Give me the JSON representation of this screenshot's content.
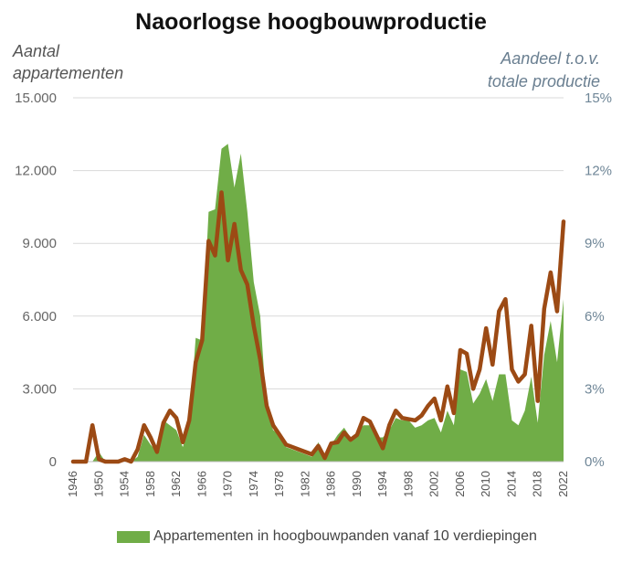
{
  "chart_data": {
    "type": "area",
    "title": "Naoorlogse hoogbouwproductie",
    "ylabel_left_lines": [
      "Aantal",
      "appartementen"
    ],
    "ylabel_right_lines": [
      "Aandeel t.o.v.",
      "totale productie"
    ],
    "ylim_left": [
      0,
      15000
    ],
    "ylim_right": [
      0,
      15
    ],
    "yticks_left": [
      "0",
      "3.000",
      "6.000",
      "9.000",
      "12.000",
      "15.000"
    ],
    "yticks_right": [
      "0%",
      "3%",
      "6%",
      "9%",
      "12%",
      "15%"
    ],
    "xticks": [
      "1946",
      "1950",
      "1954",
      "1958",
      "1962",
      "1966",
      "1970",
      "1974",
      "1978",
      "1982",
      "1986",
      "1990",
      "1994",
      "1998",
      "2002",
      "2006",
      "2010",
      "2014",
      "2018",
      "2022"
    ],
    "x": [
      1946,
      1947,
      1948,
      1949,
      1950,
      1951,
      1952,
      1953,
      1954,
      1955,
      1956,
      1957,
      1958,
      1959,
      1960,
      1961,
      1962,
      1963,
      1964,
      1965,
      1966,
      1967,
      1968,
      1969,
      1970,
      1971,
      1972,
      1973,
      1974,
      1975,
      1976,
      1977,
      1978,
      1979,
      1980,
      1981,
      1982,
      1983,
      1984,
      1985,
      1986,
      1987,
      1988,
      1989,
      1990,
      1991,
      1992,
      1993,
      1994,
      1995,
      1996,
      1997,
      1998,
      1999,
      2000,
      2001,
      2002,
      2003,
      2004,
      2005,
      2006,
      2007,
      2008,
      2009,
      2010,
      2011,
      2012,
      2013,
      2014,
      2015,
      2016,
      2017,
      2018,
      2019,
      2020,
      2021,
      2022
    ],
    "series": [
      {
        "name": "Appartementen in hoogbouwpanden vanaf 10 verdiepingen",
        "axis": "left",
        "color": "#70ad47",
        "values": [
          0,
          0,
          0,
          0,
          400,
          0,
          0,
          0,
          100,
          0,
          200,
          1100,
          700,
          400,
          1700,
          1500,
          1300,
          600,
          1500,
          5100,
          5000,
          10300,
          10400,
          12900,
          13100,
          11300,
          12700,
          10300,
          7400,
          6000,
          2100,
          1300,
          1100,
          600,
          500,
          400,
          300,
          200,
          800,
          200,
          700,
          1100,
          1400,
          1000,
          1200,
          1500,
          1500,
          1000,
          1000,
          1300,
          1800,
          1700,
          1700,
          1400,
          1500,
          1700,
          1800,
          1200,
          2100,
          1500,
          3800,
          3700,
          2400,
          2800,
          3400,
          2500,
          3600,
          3600,
          1700,
          1500,
          2100,
          3500,
          1600,
          4400,
          5800,
          4100,
          6700
        ]
      },
      {
        "name": "Aandeel t.o.v. totale productie",
        "axis": "right",
        "color": "#9c4a14",
        "values": [
          0,
          0,
          0,
          1.5,
          0.1,
          0,
          0,
          0,
          0.1,
          0,
          0.5,
          1.5,
          1.0,
          0.4,
          1.6,
          2.1,
          1.8,
          0.8,
          1.7,
          4.1,
          5.0,
          9.1,
          8.5,
          11.1,
          8.3,
          9.8,
          7.9,
          7.3,
          5.6,
          4.2,
          2.3,
          1.5,
          1.1,
          0.7,
          0.6,
          0.5,
          0.4,
          0.3,
          0.65,
          0.15,
          0.75,
          0.8,
          1.2,
          0.9,
          1.1,
          1.8,
          1.65,
          1.1,
          0.55,
          1.5,
          2.1,
          1.8,
          1.75,
          1.7,
          1.9,
          2.3,
          2.6,
          1.7,
          3.1,
          2.0,
          4.6,
          4.45,
          3.0,
          3.8,
          5.5,
          4.0,
          6.2,
          6.7,
          3.8,
          3.3,
          3.6,
          5.6,
          2.5,
          6.3,
          7.8,
          6.2,
          9.9
        ]
      }
    ],
    "legend_label": "Appartementen in hoogbouwpanden vanaf 10 verdiepingen",
    "legend_position": "bottom",
    "grid": true
  }
}
